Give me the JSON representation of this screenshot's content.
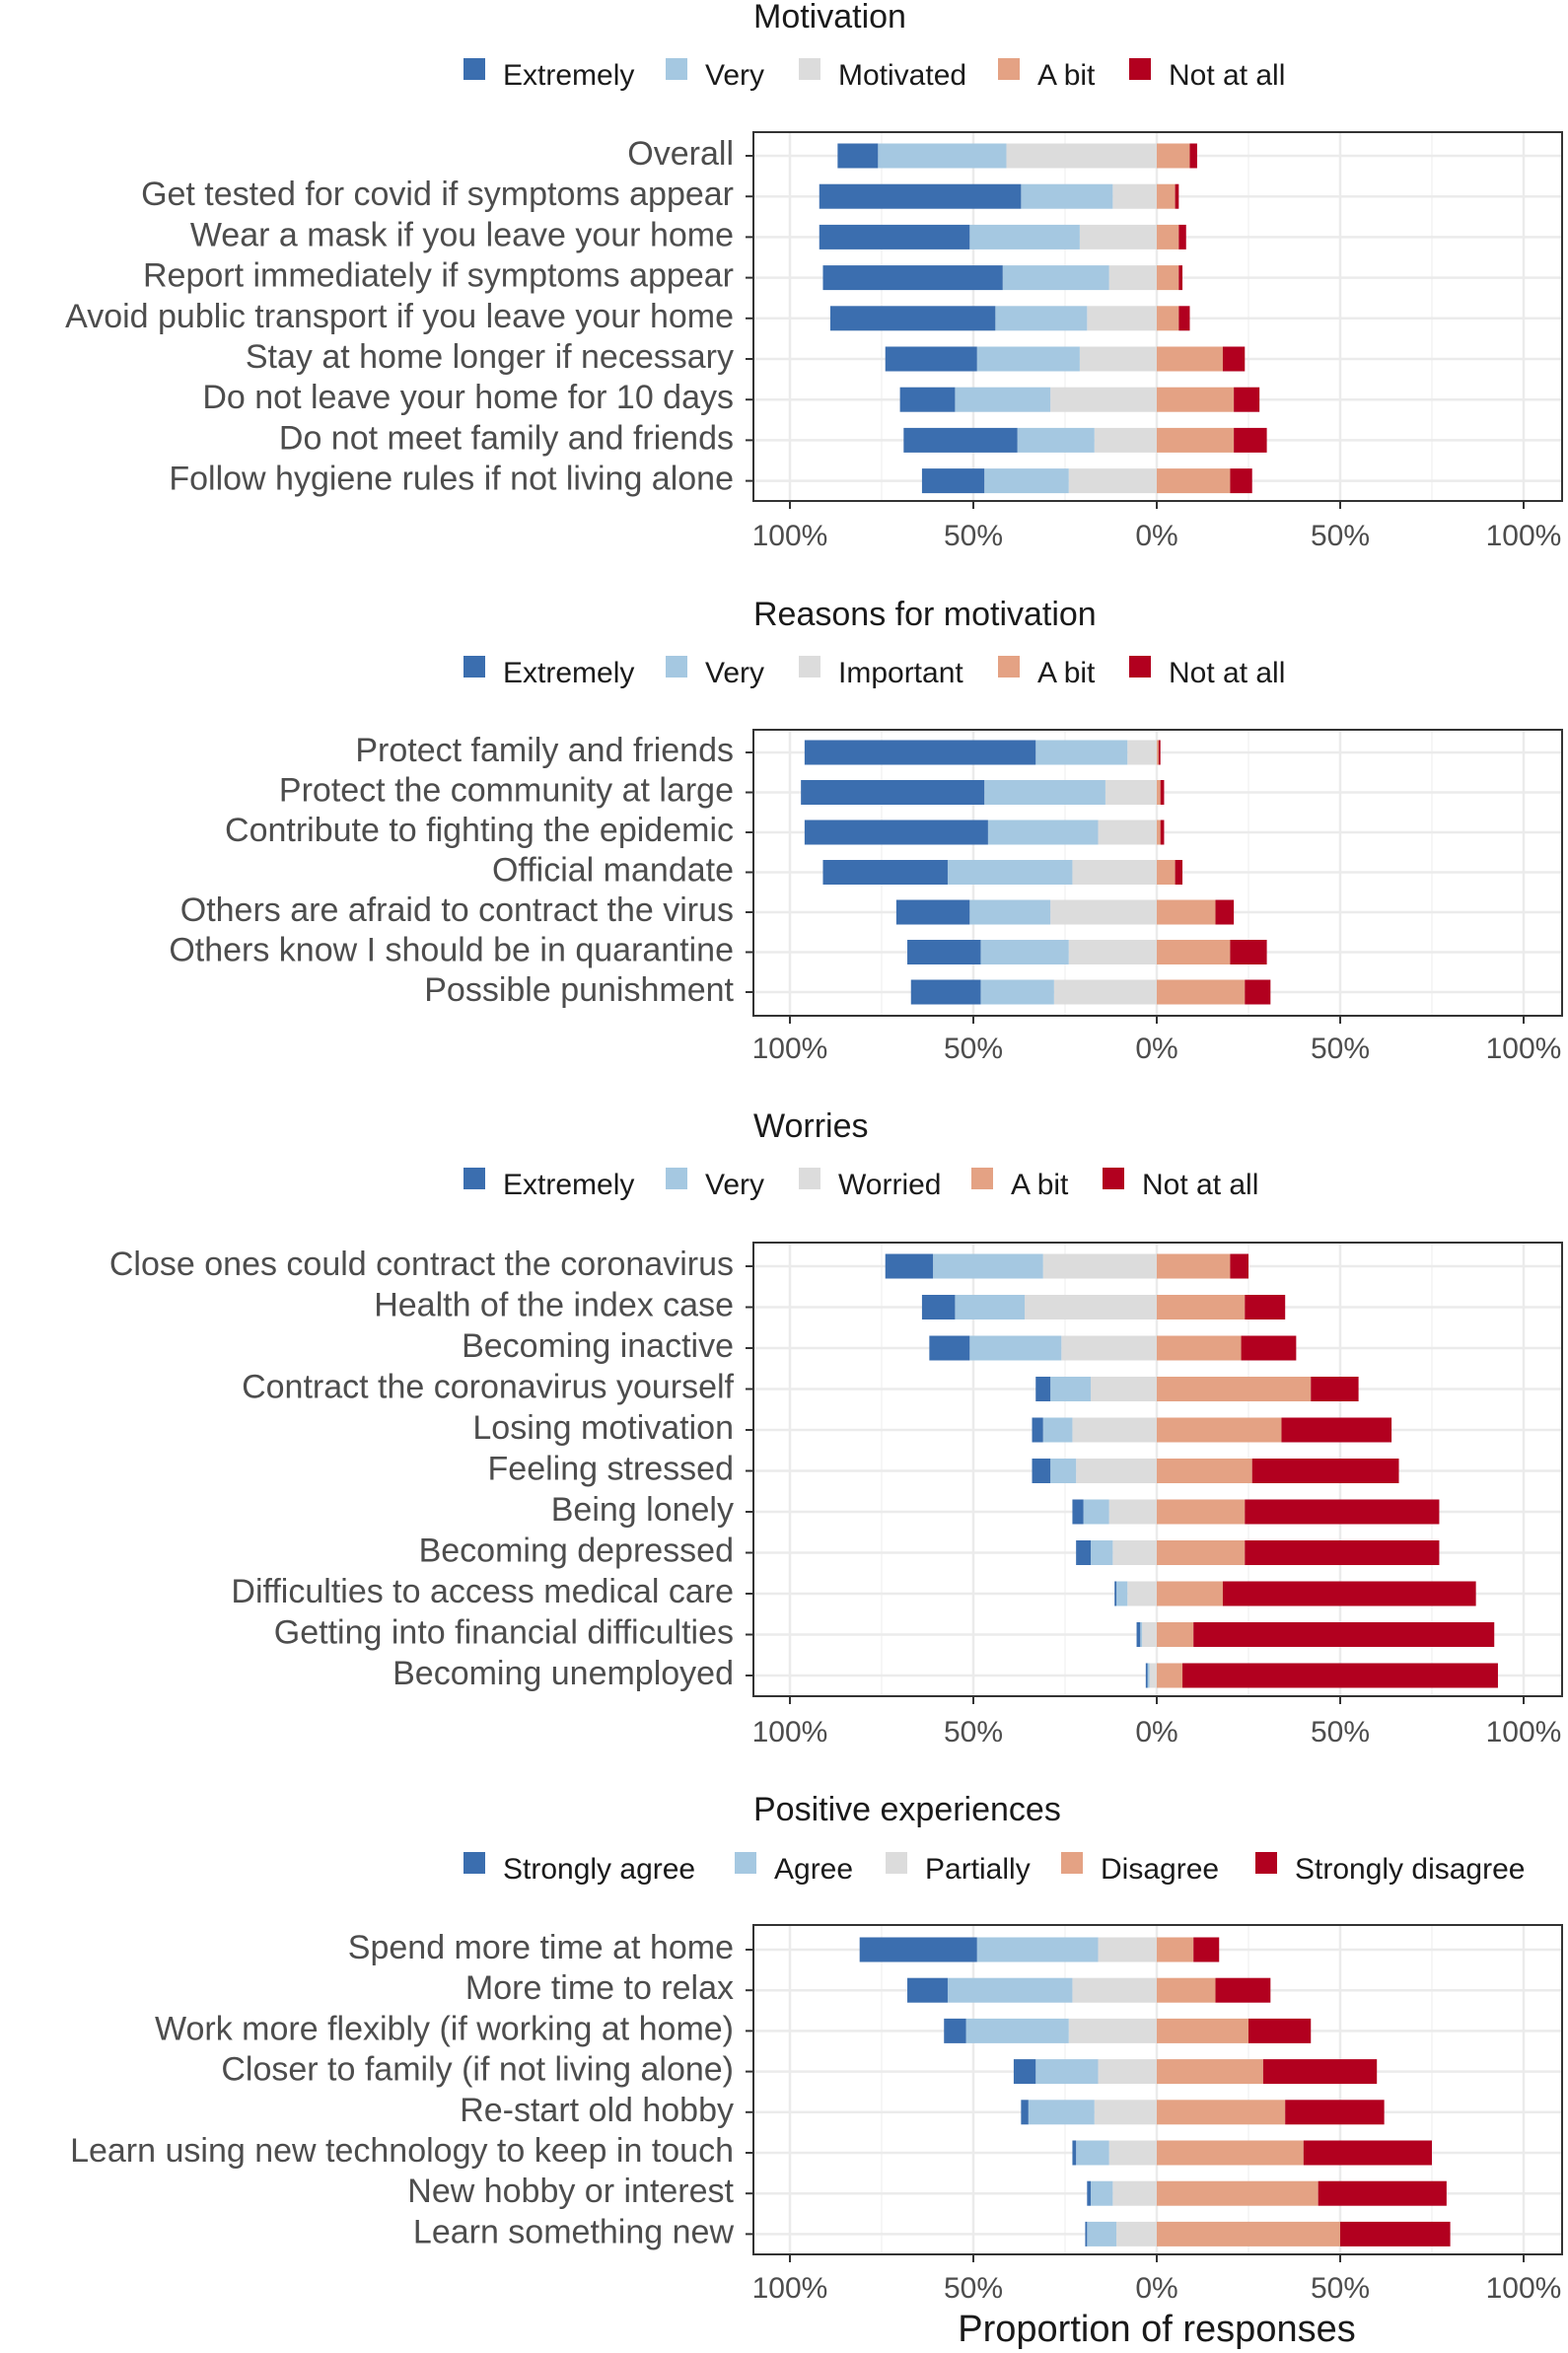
{
  "colors": {
    "extremely": "#3b6eaf",
    "very": "#a5c8e1",
    "middle": "#dcdcdc",
    "a_bit": "#e4a284",
    "not_at_all": "#b2001f",
    "grid": "#ebebeb",
    "panel_border": "#333333"
  },
  "chart_data": {
    "type": "bar",
    "orientation": "diverging-horizontal-stacked",
    "xlabel": "Proportion of responses",
    "x_ticks": [
      "100%",
      "50%",
      "0%",
      "50%",
      "100%"
    ],
    "xlim": [
      -1.05,
      1.1
    ],
    "panels": [
      {
        "title": "Motivation",
        "legend": [
          "Extremely",
          "Very",
          "Motivated",
          "A bit",
          "Not at all"
        ],
        "categories": [
          "Overall",
          "Get tested for covid if symptoms appear",
          "Wear a mask if you leave your home",
          "Report immediately if symptoms appear",
          "Avoid public transport if you leave your home",
          "Stay at home longer if necessary",
          "Do not leave your home for 10 days",
          "Do not meet family and friends",
          "Follow hygiene rules if not living alone"
        ],
        "series": [
          {
            "name": "Extremely",
            "values": [
              11,
              55,
              41,
              49,
              45,
              25,
              15,
              31,
              17
            ]
          },
          {
            "name": "Very",
            "values": [
              35,
              25,
              30,
              29,
              25,
              28,
              26,
              21,
              23
            ]
          },
          {
            "name": "Motivated",
            "values": [
              41,
              12,
              21,
              13,
              19,
              21,
              29,
              17,
              24
            ]
          },
          {
            "name": "A bit",
            "values": [
              9,
              5,
              6,
              6,
              6,
              18,
              21,
              21,
              20
            ]
          },
          {
            "name": "Not at all",
            "values": [
              2,
              1,
              2,
              1,
              3,
              6,
              7,
              9,
              6
            ]
          }
        ]
      },
      {
        "title": "Reasons for motivation",
        "legend": [
          "Extremely",
          "Very",
          "Important",
          "A bit",
          "Not at all"
        ],
        "categories": [
          "Protect family and friends",
          "Protect the community at large",
          "Contribute to fighting the epidemic",
          "Official mandate",
          "Others are afraid to contract the virus",
          "Others know I should be in quarantine",
          "Possible punishment"
        ],
        "series": [
          {
            "name": "Extremely",
            "values": [
              63,
              50,
              50,
              34,
              20,
              20,
              19
            ]
          },
          {
            "name": "Very",
            "values": [
              25,
              33,
              30,
              34,
              22,
              24,
              20
            ]
          },
          {
            "name": "Important",
            "values": [
              8,
              14,
              16,
              23,
              29,
              24,
              28
            ]
          },
          {
            "name": "A bit",
            "values": [
              0.5,
              1,
              1,
              5,
              16,
              20,
              24
            ]
          },
          {
            "name": "Not at all",
            "values": [
              0.5,
              1,
              1,
              2,
              5,
              10,
              7
            ]
          }
        ]
      },
      {
        "title": "Worries",
        "legend": [
          "Extremely",
          "Very",
          "Worried",
          "A bit",
          "Not at all"
        ],
        "categories": [
          "Close ones could contract the coronavirus",
          "Health of the index case",
          "Becoming inactive",
          "Contract the coronavirus yourself",
          "Losing motivation",
          "Feeling stressed",
          "Being lonely",
          "Becoming depressed",
          "Difficulties to access medical care",
          "Getting into financial difficulties",
          "Becoming unemployed"
        ],
        "series": [
          {
            "name": "Extremely",
            "values": [
              13,
              9,
              11,
              4,
              3,
              5,
              3,
              4,
              0.5,
              1,
              0.5
            ]
          },
          {
            "name": "Very",
            "values": [
              30,
              19,
              25,
              11,
              8,
              7,
              7,
              6,
              3,
              0.5,
              0.5
            ]
          },
          {
            "name": "Worried",
            "values": [
              31,
              36,
              26,
              18,
              23,
              22,
              13,
              12,
              8,
              4,
              2
            ]
          },
          {
            "name": "A bit",
            "values": [
              20,
              24,
              23,
              42,
              34,
              26,
              24,
              24,
              18,
              10,
              7
            ]
          },
          {
            "name": "Not at all",
            "values": [
              5,
              11,
              15,
              13,
              30,
              40,
              53,
              53,
              69,
              82,
              86
            ]
          }
        ]
      },
      {
        "title": "Positive experiences",
        "legend": [
          "Strongly agree",
          "Agree",
          "Partially",
          "Disagree",
          "Strongly disagree"
        ],
        "categories": [
          "Spend more time at home",
          "More time to relax",
          "Work more flexibly (if working at home)",
          "Closer to family (if not living alone)",
          "Re-start old hobby",
          "Learn using new technology to keep in touch",
          "New hobby or interest",
          "Learn something new"
        ],
        "series": [
          {
            "name": "Strongly agree",
            "values": [
              32,
              11,
              6,
              6,
              2,
              1,
              1,
              0.5
            ]
          },
          {
            "name": "Agree",
            "values": [
              33,
              34,
              28,
              17,
              18,
              9,
              6,
              8
            ]
          },
          {
            "name": "Partially",
            "values": [
              16,
              23,
              24,
              16,
              17,
              13,
              12,
              11
            ]
          },
          {
            "name": "Disagree",
            "values": [
              10,
              16,
              25,
              29,
              35,
              40,
              44,
              50
            ]
          },
          {
            "name": "Strongly disagree",
            "values": [
              7,
              15,
              17,
              31,
              27,
              35,
              35,
              30
            ]
          }
        ]
      }
    ]
  }
}
